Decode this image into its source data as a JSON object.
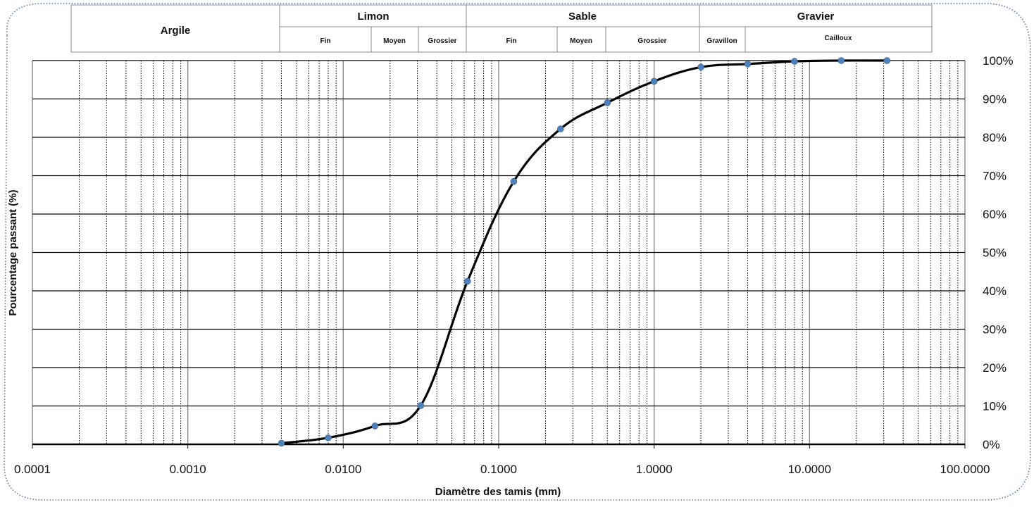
{
  "chart_data": {
    "type": "line",
    "xscale": "log",
    "xlim": [
      0.0001,
      100
    ],
    "ylim": [
      0,
      100
    ],
    "xlabel": "Diamètre des tamis (mm)",
    "ylabel": "Pourcentage passant (%)",
    "x_tick_labels": [
      "0.0001",
      "0.0010",
      "0.0100",
      "0.1000",
      "1.0000",
      "10.0000",
      "100.0000"
    ],
    "x_tick_values": [
      0.0001,
      0.001,
      0.01,
      0.1,
      1,
      10,
      100
    ],
    "y_tick_labels": [
      "0%",
      "10%",
      "20%",
      "30%",
      "40%",
      "50%",
      "60%",
      "70%",
      "80%",
      "90%",
      "100%"
    ],
    "y_tick_values": [
      0,
      10,
      20,
      30,
      40,
      50,
      60,
      70,
      80,
      90,
      100
    ],
    "grid": true,
    "legend": "none",
    "colors": {
      "line": "#000000",
      "marker": "#4f81bd",
      "grid": "#000000"
    },
    "series": [
      {
        "x": [
          0.004,
          0.008,
          0.016,
          0.0315,
          0.063,
          0.125,
          0.25,
          0.5,
          1.0,
          2.0,
          4.0,
          8.0,
          16.0,
          31.5
        ],
        "y": [
          0.3,
          1.7,
          4.8,
          10.1,
          42.5,
          68.5,
          82.2,
          89.0,
          94.6,
          98.3,
          99.1,
          99.8,
          100,
          100
        ]
      }
    ],
    "classification": {
      "groups": [
        {
          "label": "Argile",
          "subs": []
        },
        {
          "label": "Limon",
          "subs": [
            "Fin",
            "Moyen",
            "Grossier"
          ]
        },
        {
          "label": "Sable",
          "subs": [
            "Fin",
            "Moyen",
            "Grossier"
          ]
        },
        {
          "label": "Gravier",
          "subs": [
            "Gravillon",
            "Cailloux"
          ]
        }
      ]
    }
  }
}
